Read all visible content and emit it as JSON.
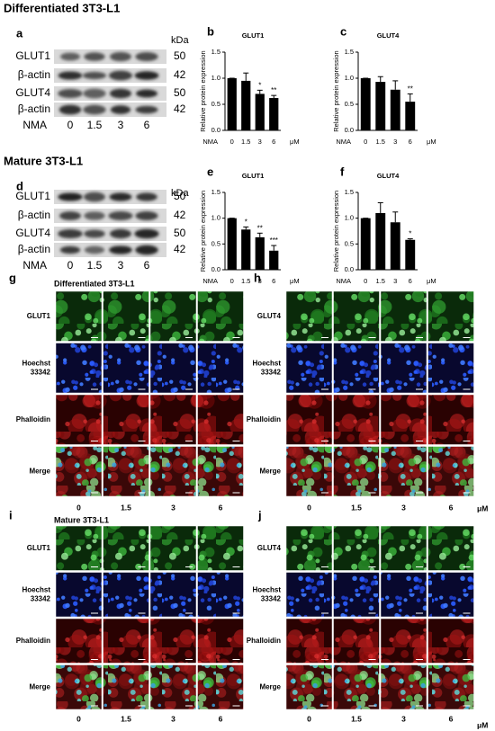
{
  "blots": [
    {
      "panel": "a",
      "section_title": "Differentiated 3T3-L1",
      "unit": "kDa",
      "x_label": "NMA",
      "lanes": [
        "0",
        "1.5",
        "3",
        "6"
      ],
      "rows": [
        {
          "label": "GLUT1",
          "kda": 50
        },
        {
          "label": "β-actin",
          "kda": 42
        },
        {
          "label": "GLUT4",
          "kda": 50
        },
        {
          "label": "β-actin",
          "kda": 42
        }
      ]
    },
    {
      "panel": "d",
      "section_title": "Mature 3T3-L1",
      "unit": "kDa",
      "x_label": "NMA",
      "lanes": [
        "0",
        "1.5",
        "3",
        "6"
      ],
      "rows": [
        {
          "label": "GLUT1",
          "kda": 50
        },
        {
          "label": "β-actin",
          "kda": 42
        },
        {
          "label": "GLUT4",
          "kda": 50
        },
        {
          "label": "β-actin",
          "kda": 42
        }
      ]
    }
  ],
  "chart_data": [
    {
      "panel": "b",
      "type": "bar",
      "title": "GLUT1",
      "ylabel": "Relative protein expression",
      "xlabel": "NMA",
      "unit": "μM",
      "color": "#000000",
      "categories": [
        "0",
        "1.5",
        "3",
        "6"
      ],
      "values": [
        1.0,
        0.95,
        0.7,
        0.62
      ],
      "errors": [
        0,
        0.15,
        0.07,
        0.05
      ],
      "significance": [
        null,
        null,
        "*",
        "**"
      ],
      "ylim": [
        0,
        1.5
      ],
      "yticks": [
        {
          "value": 0,
          "label": "0.0"
        },
        {
          "value": 0.5,
          "label": "0.5"
        },
        {
          "value": 1,
          "label": "1.0"
        },
        {
          "value": 1.5,
          "label": "1.5"
        }
      ]
    },
    {
      "panel": "c",
      "type": "bar",
      "title": "GLUT4",
      "ylabel": "Relative protein expression",
      "xlabel": "NMA",
      "unit": "μM",
      "color": "#000000",
      "categories": [
        "0",
        "1.5",
        "3",
        "6"
      ],
      "values": [
        1.0,
        0.93,
        0.78,
        0.55
      ],
      "errors": [
        0,
        0.1,
        0.17,
        0.15
      ],
      "significance": [
        null,
        null,
        null,
        "**"
      ],
      "ylim": [
        0,
        1.5
      ],
      "yticks": [
        {
          "value": 0,
          "label": "0.0"
        },
        {
          "value": 0.5,
          "label": "0.5"
        },
        {
          "value": 1,
          "label": "1.0"
        },
        {
          "value": 1.5,
          "label": "1.5"
        }
      ]
    },
    {
      "panel": "e",
      "type": "bar",
      "title": "GLUT1",
      "ylabel": "Relative protein expression",
      "xlabel": "NMA",
      "unit": "μM",
      "color": "#000000",
      "categories": [
        "0",
        "1.5",
        "3",
        "6"
      ],
      "values": [
        1.0,
        0.78,
        0.63,
        0.37
      ],
      "errors": [
        0,
        0.05,
        0.08,
        0.1
      ],
      "significance": [
        null,
        "*",
        "**",
        "***"
      ],
      "ylim": [
        0,
        1.5
      ],
      "yticks": [
        {
          "value": 0,
          "label": "0.0"
        },
        {
          "value": 0.5,
          "label": "0.5"
        },
        {
          "value": 1,
          "label": "1.0"
        },
        {
          "value": 1.5,
          "label": "1.5"
        }
      ]
    },
    {
      "panel": "f",
      "type": "bar",
      "title": "GLUT4",
      "ylabel": "Relative protein expression",
      "xlabel": "NMA",
      "unit": "μM",
      "color": "#000000",
      "categories": [
        "0",
        "1.5",
        "3",
        "6"
      ],
      "values": [
        1.0,
        1.1,
        0.92,
        0.58
      ],
      "errors": [
        0,
        0.2,
        0.2,
        0.02
      ],
      "significance": [
        null,
        null,
        null,
        "*"
      ],
      "ylim": [
        0,
        1.5
      ],
      "yticks": [
        {
          "value": 0,
          "label": "0.0"
        },
        {
          "value": 0.5,
          "label": "0.5"
        },
        {
          "value": 1,
          "label": "1.0"
        },
        {
          "value": 1.5,
          "label": "1.5"
        }
      ]
    }
  ],
  "microscopy": [
    {
      "panel": "g",
      "subtitle": "Differentiated 3T3-L1",
      "rows": [
        "GLUT1",
        "Hoechst 33342",
        "Phalloidin",
        "Merge"
      ],
      "columns": [
        "0",
        "1.5",
        "3",
        "6"
      ]
    },
    {
      "panel": "h",
      "rows": [
        "GLUT4",
        "Hoechst 33342",
        "Phalloidin",
        "Merge"
      ],
      "columns": [
        "0",
        "1.5",
        "3",
        "6"
      ],
      "unit": "μM"
    },
    {
      "panel": "i",
      "subtitle": "Mature 3T3-L1",
      "rows": [
        "GLUT1",
        "Hoechst 33342",
        "Phalloidin",
        "Merge"
      ],
      "columns": [
        "0",
        "1.5",
        "3",
        "6"
      ]
    },
    {
      "panel": "j",
      "rows": [
        "GLUT4",
        "Hoechst 33342",
        "Phalloidin",
        "Merge"
      ],
      "columns": [
        "0",
        "1.5",
        "3",
        "6"
      ],
      "unit": "μM"
    }
  ]
}
